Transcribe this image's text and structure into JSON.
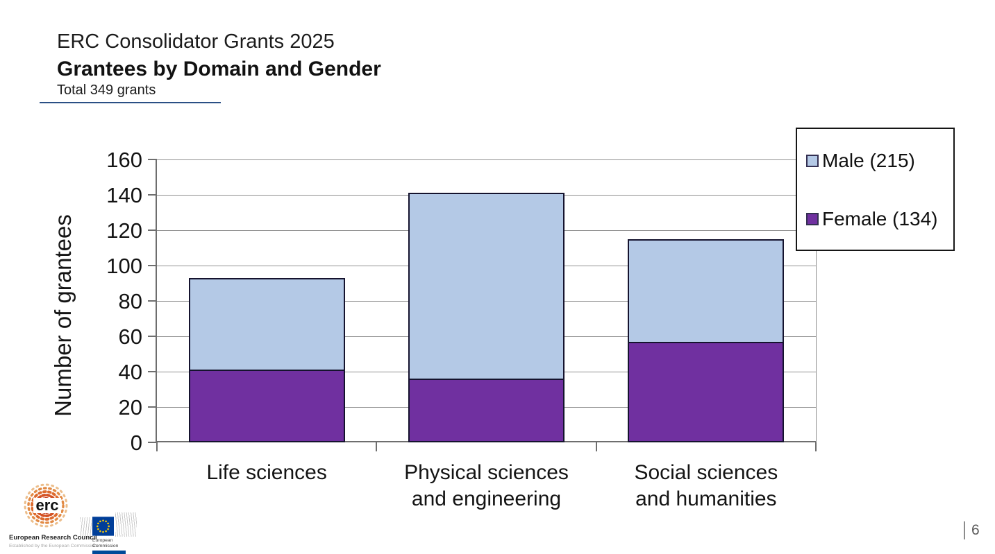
{
  "slide": {
    "pretitle": "ERC Consolidator Grants 2025",
    "title": "Grantees by Domain and Gender",
    "subtitle": "Total 349 grants",
    "page_number": "6"
  },
  "chart_data": {
    "type": "bar",
    "stacked": true,
    "title": "",
    "xlabel": "",
    "ylabel": "Number of grantees",
    "categories": [
      "Life sciences",
      "Physical sciences\nand engineering",
      "Social sciences\nand humanities"
    ],
    "series": [
      {
        "name": "Female",
        "legend_label": "Female (134)",
        "total": 134,
        "color": "#7030A0",
        "values": [
          41,
          36,
          57
        ]
      },
      {
        "name": "Male",
        "legend_label": "Male (215)",
        "total": 215,
        "color": "#B4C9E6",
        "values": [
          52,
          105,
          58
        ]
      }
    ],
    "stack_totals": [
      93,
      141,
      115
    ],
    "total_grants": 349,
    "ylim": [
      0,
      160
    ],
    "ytick_step": 20,
    "grid": true,
    "legend_position": "top-right",
    "legend_order": [
      "Male (215)",
      "Female (134)"
    ],
    "colors": {
      "male": "#B4C9E6",
      "female": "#7030A0",
      "bar_border": "#15132E",
      "gridline": "#8F8F8F"
    }
  },
  "footer": {
    "erc_logo_text": "erc",
    "erc_name": "European Research Council",
    "erc_tagline": "Established by the European Commission",
    "ec_line1": "European",
    "ec_line2": "Commission"
  }
}
